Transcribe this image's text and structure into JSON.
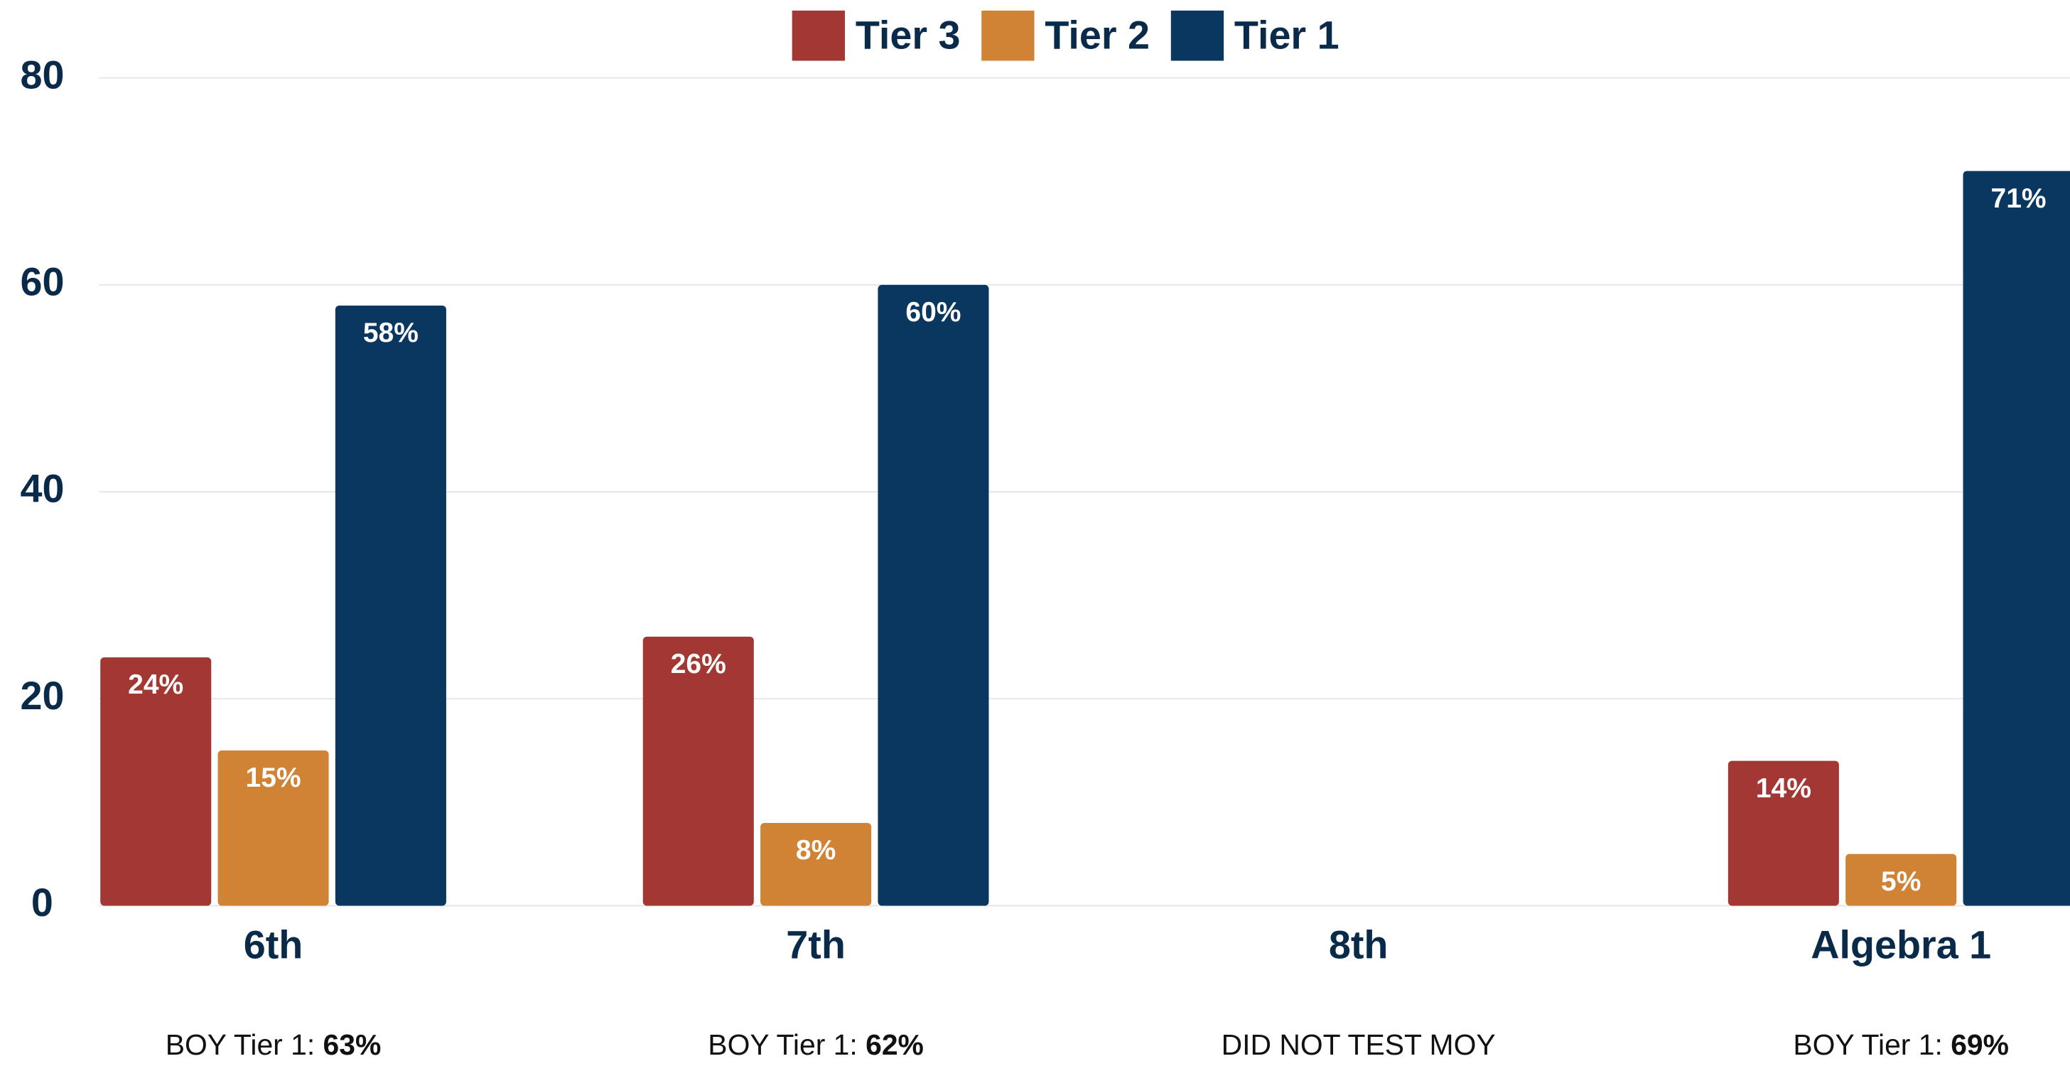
{
  "chart_data": {
    "type": "bar",
    "categories": [
      "6th",
      "7th",
      "8th",
      "Algebra 1"
    ],
    "series": [
      {
        "name": "Tier 3",
        "color": "#a33734",
        "values": [
          24,
          26,
          null,
          14
        ],
        "value_labels": [
          "24%",
          "26%",
          null,
          "14%"
        ]
      },
      {
        "name": "Tier 2",
        "color": "#d08334",
        "values": [
          15,
          8,
          null,
          5
        ],
        "value_labels": [
          "15%",
          "8%",
          null,
          "5%"
        ]
      },
      {
        "name": "Tier 1",
        "color": "#0a3760",
        "values": [
          58,
          60,
          null,
          71
        ],
        "value_labels": [
          "58%",
          "60%",
          null,
          "71%"
        ]
      }
    ],
    "ylim": [
      0,
      80
    ],
    "yticks": [
      0,
      20,
      40,
      60,
      80
    ],
    "grid": true,
    "legend": "top",
    "annotations": [
      {
        "text": "BOY Tier 1: ",
        "bold": "63%"
      },
      {
        "text": "BOY Tier 1: ",
        "bold": "62%"
      },
      {
        "text": "DID NOT TEST MOY"
      },
      {
        "text": "BOY Tier 1: ",
        "bold": "69%"
      }
    ]
  }
}
